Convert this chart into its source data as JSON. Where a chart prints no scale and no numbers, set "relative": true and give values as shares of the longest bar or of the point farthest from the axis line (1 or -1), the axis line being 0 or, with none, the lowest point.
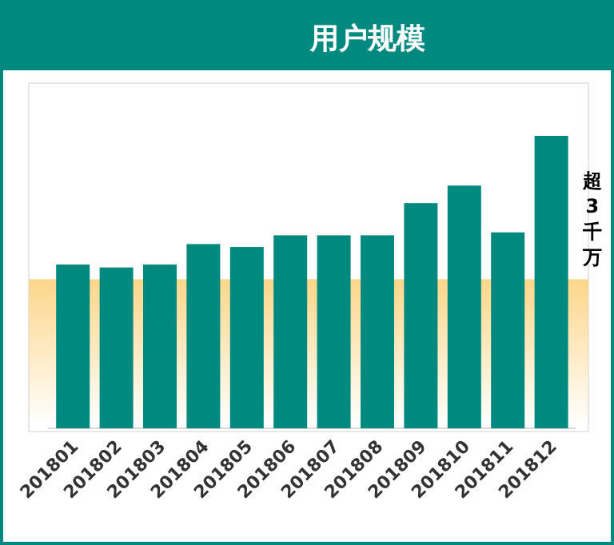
{
  "chart_data": {
    "type": "bar",
    "title": "用户规模",
    "relative": true,
    "categories": [
      "201801",
      "201802",
      "201803",
      "201804",
      "201805",
      "201806",
      "201807",
      "201808",
      "201809",
      "201810",
      "201811",
      "201812"
    ],
    "values": [
      0.56,
      0.55,
      0.56,
      0.63,
      0.62,
      0.66,
      0.66,
      0.66,
      0.77,
      0.83,
      0.67,
      1
    ],
    "color": "#00897f",
    "bands": [
      {
        "axis": "y",
        "from": 0.03,
        "to": 0.51,
        "color": "#fcd68a"
      }
    ],
    "annotations": [
      "超3千万"
    ]
  }
}
